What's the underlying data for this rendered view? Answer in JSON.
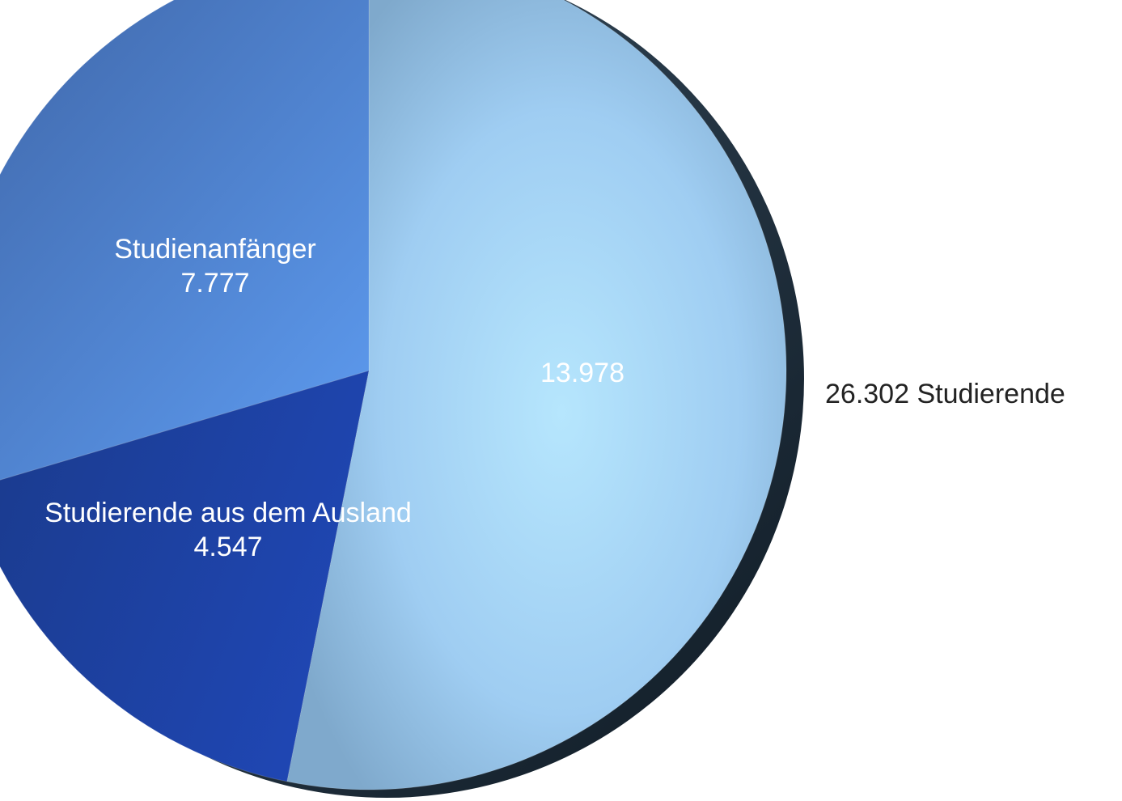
{
  "chart_data": {
    "type": "pie",
    "slices": [
      {
        "label": "",
        "value_text": "13.978",
        "value": 13978,
        "color": "#a3d4f5"
      },
      {
        "label": "Studierende aus dem Ausland",
        "value_text": "4.547",
        "value": 4547,
        "color": "#1d3f9e"
      },
      {
        "label": "Studienanfänger",
        "value_text": "7.777",
        "value": 7777,
        "color": "#4f81d0"
      }
    ],
    "total_text": "26.302 Studierende",
    "total": 26302,
    "legend": "none"
  }
}
